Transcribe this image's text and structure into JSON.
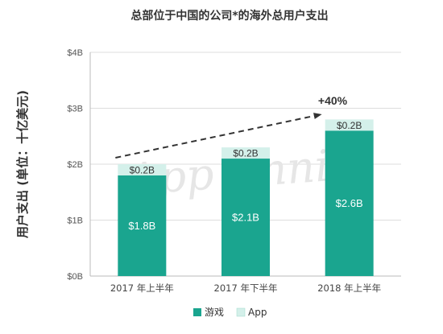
{
  "chart_data": {
    "type": "bar",
    "stacked": true,
    "title": "总部位于中国的公司*的海外总用户支出",
    "ylabel": "用户支出 (单位：十亿美元)",
    "xlabel": "",
    "categories": [
      "2017 年上半年",
      "2017 年下半年",
      "2018 年上半年"
    ],
    "series": [
      {
        "name": "游戏",
        "values": [
          1.8,
          2.1,
          2.6
        ],
        "labels": [
          "$1.8B",
          "$2.1B",
          "$2.6B"
        ],
        "color": "#1aa58f"
      },
      {
        "name": "App",
        "values": [
          0.2,
          0.2,
          0.2
        ],
        "labels": [
          "$0.2B",
          "$0.2B",
          "$0.2B"
        ],
        "color": "#d4f0ea"
      }
    ],
    "ylim": [
      0,
      4
    ],
    "yticks": [
      0,
      1,
      2,
      3,
      4
    ],
    "ytick_labels": [
      "$0B",
      "$1B",
      "$2B",
      "$3B",
      "$4B"
    ],
    "grid": true,
    "legend_position": "bottom",
    "annotation": {
      "text": "+40%",
      "style": "dashed-arrow"
    },
    "watermark": "App Annie"
  }
}
